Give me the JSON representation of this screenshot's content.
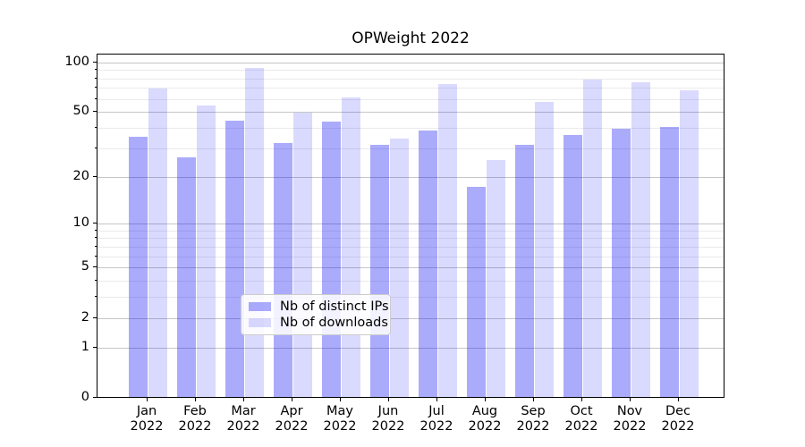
{
  "chart_data": {
    "type": "bar",
    "title": "OPWeight 2022",
    "scale": "log1p",
    "ylim": [
      0,
      113
    ],
    "grid": "both",
    "legend_position": "lower center",
    "major_yticks": [
      0,
      1,
      2,
      5,
      10,
      20,
      50,
      100
    ],
    "minor_yticks": [
      3,
      4,
      6,
      7,
      8,
      9,
      30,
      40,
      60,
      70,
      80,
      90
    ],
    "categories": [
      "Jan",
      "Feb",
      "Mar",
      "Apr",
      "May",
      "Jun",
      "Jul",
      "Aug",
      "Sep",
      "Oct",
      "Nov",
      "Dec"
    ],
    "year_label": "2022",
    "series": [
      {
        "name": "Nb of distinct IPs",
        "color": "rgba(10,10,245,0.34)",
        "values": [
          35,
          26,
          44,
          32,
          43,
          31,
          38,
          17,
          31,
          36,
          39,
          40
        ]
      },
      {
        "name": "Nb of downloads",
        "color": "rgba(10,10,245,0.15)",
        "values": [
          69,
          54,
          91,
          49,
          61,
          34,
          73,
          25,
          57,
          78,
          75,
          67
        ]
      }
    ]
  },
  "colors": {
    "major_grid": "#c6c6c6",
    "minor_grid": "#eaeaea",
    "spine": "#000000",
    "legend_border": "#cccccc"
  }
}
